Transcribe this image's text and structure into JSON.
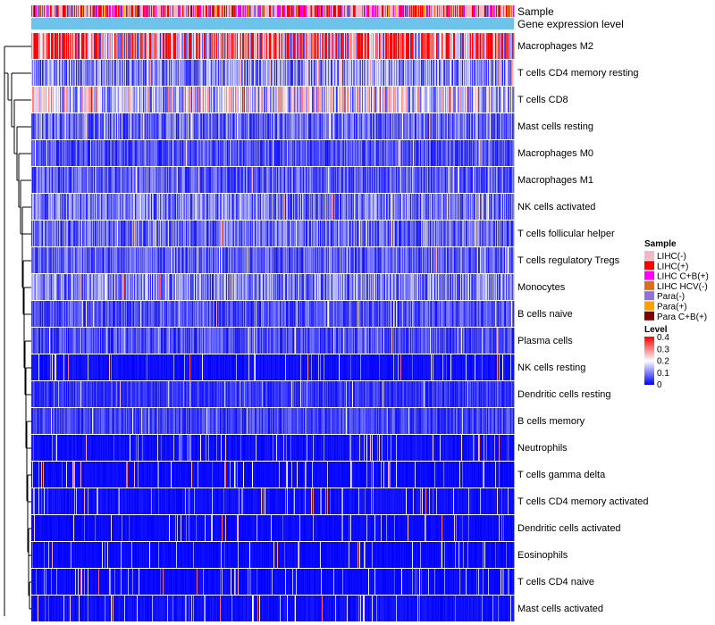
{
  "chart_data": {
    "type": "heatmap",
    "annotations": [
      "Sample",
      "Gene expression level"
    ],
    "annotation_color": "#6ec3ea",
    "rows": [
      "Macrophages M2",
      "T cells CD4 memory resting",
      "T cells CD8",
      "Mast cells resting",
      "Macrophages M0",
      "Macrophages M1",
      "NK cells activated",
      "T cells follicular helper",
      "T cells regulatory  Tregs",
      "Monocytes",
      "B cells naive",
      "Plasma cells",
      "NK cells resting",
      "Dendritic cells resting",
      "B cells memory",
      "Neutrophils",
      "T cells gamma delta",
      "T cells CD4 memory activated",
      "Dendritic cells activated",
      "Eosinophils",
      "T cells CD4 naive",
      "Mast cells activated"
    ],
    "row_mean_levels": [
      0.28,
      0.1,
      0.17,
      0.08,
      0.06,
      0.07,
      0.09,
      0.08,
      0.07,
      0.1,
      0.06,
      0.06,
      0.03,
      0.04,
      0.05,
      0.03,
      0.02,
      0.03,
      0.02,
      0.02,
      0.02,
      0.03
    ],
    "n_samples": 540,
    "sample_legend": {
      "title": "Sample",
      "items": [
        {
          "label": "LIHC(-)",
          "color": "#f4b6c2"
        },
        {
          "label": "LIHC(+)",
          "color": "#ff0000"
        },
        {
          "label": "LIHC C+B(+)",
          "color": "#ff00ff"
        },
        {
          "label": "LIHC HCV(-)",
          "color": "#e06c1f"
        },
        {
          "label": "Para(-)",
          "color": "#9370db"
        },
        {
          "label": "Para(+)",
          "color": "#ff9f00"
        },
        {
          "label": "Para C+B(+)",
          "color": "#800000"
        }
      ]
    },
    "level_legend": {
      "title": "Level",
      "range": [
        0,
        0.4
      ],
      "ticks": [
        "0.4",
        "0.3",
        "0.2",
        "0.1",
        "0"
      ],
      "colors": [
        "#0000ff",
        "#ffffff",
        "#ff0000"
      ]
    }
  }
}
